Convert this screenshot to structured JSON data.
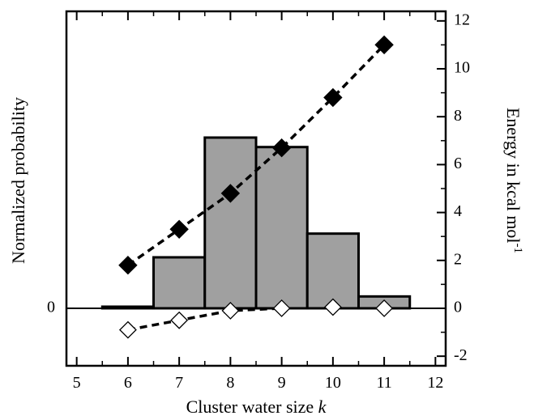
{
  "chart_data": {
    "type": "bar",
    "xlabel": "Cluster water size",
    "xlabel_var": "k",
    "ylabel_left": "Normalized probability",
    "ylabel_right": "Energy in kcal mol",
    "ylabel_right_sup": "-1",
    "left_zero_label": "0",
    "x_ticks": [
      5,
      6,
      7,
      8,
      9,
      10,
      11,
      12
    ],
    "xlim": [
      4.8,
      12.2
    ],
    "ylim_right": [
      -2.4,
      12.4
    ],
    "y_ticks_right": [
      -2,
      0,
      2,
      4,
      6,
      8,
      10,
      12
    ],
    "grid": false,
    "bars": {
      "name": "Normalized probability",
      "x": [
        6,
        7,
        8,
        9,
        10,
        11
      ],
      "values": [
        0.004,
        0.215,
        0.72,
        0.68,
        0.315,
        0.05
      ],
      "color": "#a0a0a0"
    },
    "series": [
      {
        "marker": "filled-diamond",
        "color": "#000000",
        "x": [
          6,
          7,
          8,
          9,
          10,
          11
        ],
        "values": [
          1.8,
          3.3,
          4.8,
          6.7,
          8.8,
          11.0
        ]
      },
      {
        "marker": "open-diamond",
        "color": "#000000",
        "x": [
          6,
          7,
          8,
          9,
          10,
          11
        ],
        "values": [
          -0.9,
          -0.5,
          -0.1,
          0.0,
          0.05,
          0.0
        ]
      }
    ]
  }
}
